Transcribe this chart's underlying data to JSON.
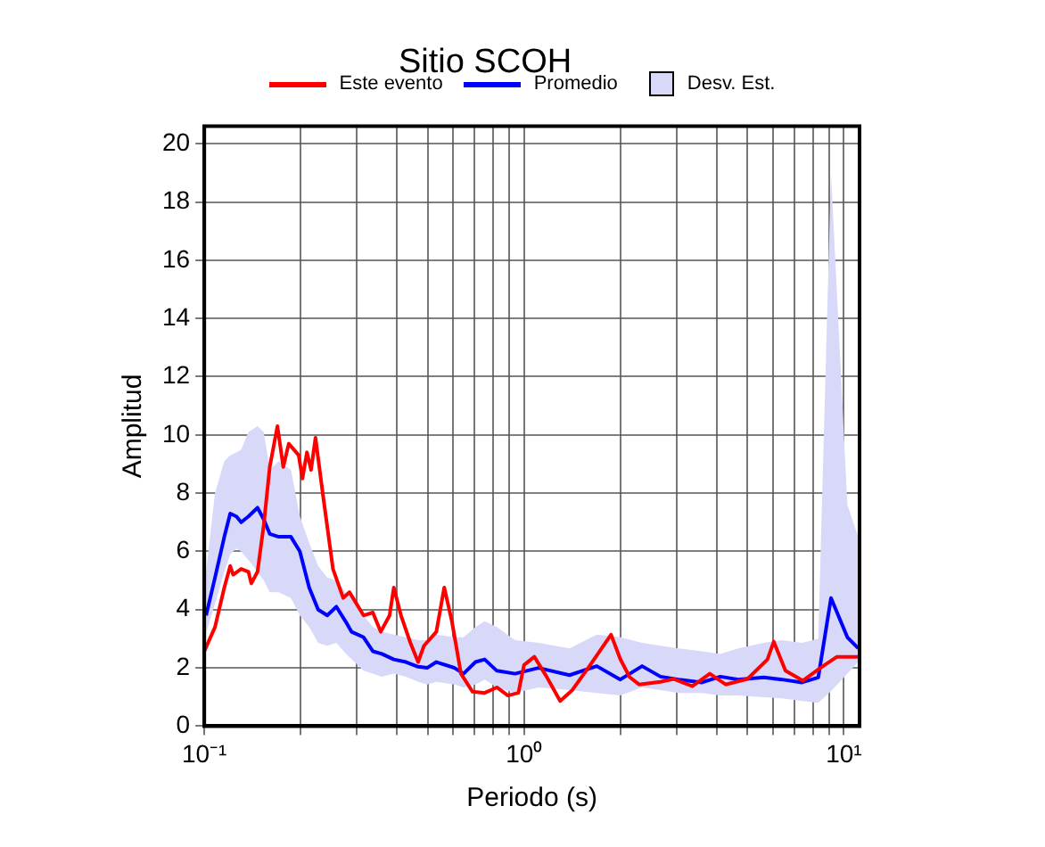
{
  "chart_data": {
    "type": "line",
    "title": "Sitio SCOH",
    "xlabel": "Periodo (s)",
    "ylabel": "Amplitud",
    "log": "x",
    "grid": true,
    "legend": "top",
    "marker": "none",
    "line_style": "solid",
    "xlim": [
      0.1,
      11.2
    ],
    "ylim": [
      0,
      20.6
    ],
    "xticks": [
      {
        "value": 0.1,
        "label": "10⁻¹"
      },
      {
        "value": 0.2,
        "label": null
      },
      {
        "value": 0.3,
        "label": null
      },
      {
        "value": 0.4,
        "label": null
      },
      {
        "value": 0.5,
        "label": null
      },
      {
        "value": 0.6,
        "label": null
      },
      {
        "value": 0.7,
        "label": null
      },
      {
        "value": 0.8,
        "label": null
      },
      {
        "value": 0.9,
        "label": null
      },
      {
        "value": 1,
        "label": "10⁰"
      },
      {
        "value": 2,
        "label": null
      },
      {
        "value": 3,
        "label": null
      },
      {
        "value": 4,
        "label": null
      },
      {
        "value": 5,
        "label": null
      },
      {
        "value": 6,
        "label": null
      },
      {
        "value": 7,
        "label": null
      },
      {
        "value": 8,
        "label": null
      },
      {
        "value": 9,
        "label": null
      },
      {
        "value": 10,
        "label": "10¹"
      }
    ],
    "yticks": [
      0,
      2,
      4,
      6,
      8,
      10,
      12,
      14,
      16,
      18,
      20
    ],
    "annotations": [
      "Desv. Est."
    ],
    "series": [
      {
        "name": "Este evento",
        "color": "#ff0000",
        "x": [
          0.1,
          0.108,
          0.1155,
          0.1205,
          0.1231,
          0.1304,
          0.1374,
          0.1403,
          0.1467,
          0.1534,
          0.1602,
          0.1693,
          0.1766,
          0.1837,
          0.1973,
          0.2027,
          0.2094,
          0.2157,
          0.2227,
          0.2346,
          0.2526,
          0.2718,
          0.2843,
          0.3149,
          0.3365,
          0.3562,
          0.3797,
          0.3914,
          0.4123,
          0.4411,
          0.4663,
          0.4866,
          0.5317,
          0.5629,
          0.5947,
          0.635,
          0.69,
          0.753,
          0.822,
          0.89,
          0.96,
          1.0,
          1.077,
          1.176,
          1.297,
          1.416,
          1.587,
          1.871,
          2.0,
          2.14,
          2.29,
          2.67,
          2.935,
          3.36,
          3.81,
          4.27,
          5.0,
          5.77,
          6.04,
          6.57,
          7.45,
          8.45,
          9.52,
          11.1
        ],
        "values": [
          2.57,
          3.4,
          4.76,
          5.5,
          5.2,
          5.4,
          5.3,
          4.9,
          5.3,
          6.9,
          8.9,
          10.3,
          8.9,
          9.7,
          9.3,
          8.5,
          9.4,
          8.8,
          9.9,
          8.0,
          5.4,
          4.4,
          4.6,
          3.8,
          3.9,
          3.24,
          3.8,
          4.76,
          3.8,
          2.86,
          2.2,
          2.76,
          3.24,
          4.76,
          3.6,
          1.8,
          1.18,
          1.14,
          1.33,
          1.05,
          1.14,
          2.1,
          2.38,
          1.7,
          0.86,
          1.24,
          2.0,
          3.14,
          2.3,
          1.68,
          1.43,
          1.52,
          1.62,
          1.37,
          1.8,
          1.43,
          1.62,
          2.29,
          2.9,
          1.9,
          1.56,
          2.0,
          2.38,
          2.38
        ]
      },
      {
        "name": "Promedio",
        "color": "#0000ff",
        "x": [
          0.1013,
          0.108,
          0.1155,
          0.1205,
          0.126,
          0.1304,
          0.1374,
          0.1467,
          0.1534,
          0.1602,
          0.171,
          0.1866,
          0.199,
          0.2128,
          0.227,
          0.2424,
          0.2588,
          0.2764,
          0.2886,
          0.3149,
          0.3365,
          0.359,
          0.3914,
          0.4272,
          0.4663,
          0.4977,
          0.5317,
          0.6056,
          0.647,
          0.7047,
          0.753,
          0.822,
          0.937,
          1.11,
          1.387,
          1.688,
          2.0,
          2.34,
          2.67,
          3.04,
          3.6,
          4.11,
          4.68,
          5.62,
          6.41,
          7.4,
          8.32,
          9.12,
          10.26,
          11.1
        ],
        "values": [
          3.8,
          5.1,
          6.5,
          7.3,
          7.2,
          7.0,
          7.2,
          7.5,
          7.1,
          6.6,
          6.5,
          6.5,
          6.0,
          4.76,
          4.0,
          3.8,
          4.1,
          3.6,
          3.24,
          3.05,
          2.57,
          2.48,
          2.29,
          2.2,
          2.04,
          2.0,
          2.2,
          2.0,
          1.8,
          2.2,
          2.29,
          1.9,
          1.8,
          2.0,
          1.75,
          2.06,
          1.6,
          2.06,
          1.7,
          1.6,
          1.5,
          1.7,
          1.6,
          1.67,
          1.6,
          1.5,
          1.67,
          4.4,
          3.05,
          2.67
        ],
        "lower": [
          3.2,
          4.2,
          5.3,
          5.9,
          6.1,
          6.0,
          5.7,
          5.3,
          5.0,
          4.6,
          4.6,
          4.4,
          3.8,
          3.4,
          2.86,
          2.76,
          2.86,
          2.5,
          2.3,
          1.9,
          1.8,
          1.7,
          1.8,
          1.7,
          1.52,
          1.43,
          1.52,
          1.43,
          1.33,
          1.43,
          1.6,
          1.33,
          1.14,
          1.33,
          1.24,
          1.14,
          1.05,
          1.33,
          1.24,
          1.14,
          1.14,
          1.05,
          1.05,
          0.99,
          0.95,
          0.86,
          0.8,
          1.2,
          1.8,
          2.2
        ],
        "upper": [
          5.3,
          8.0,
          9.1,
          9.3,
          9.4,
          9.5,
          10.1,
          10.3,
          10.1,
          8.8,
          9.1,
          8.8,
          7.2,
          6.3,
          5.5,
          5.1,
          5.0,
          4.6,
          4.4,
          3.8,
          3.4,
          3.24,
          3.14,
          3.05,
          2.95,
          2.95,
          3.14,
          3.05,
          3.05,
          3.4,
          3.6,
          3.4,
          2.95,
          2.86,
          2.67,
          3.14,
          3.05,
          2.86,
          2.76,
          2.67,
          2.57,
          2.48,
          2.67,
          2.86,
          2.95,
          2.86,
          3.0,
          19.0,
          7.6,
          6.5
        ]
      }
    ]
  }
}
